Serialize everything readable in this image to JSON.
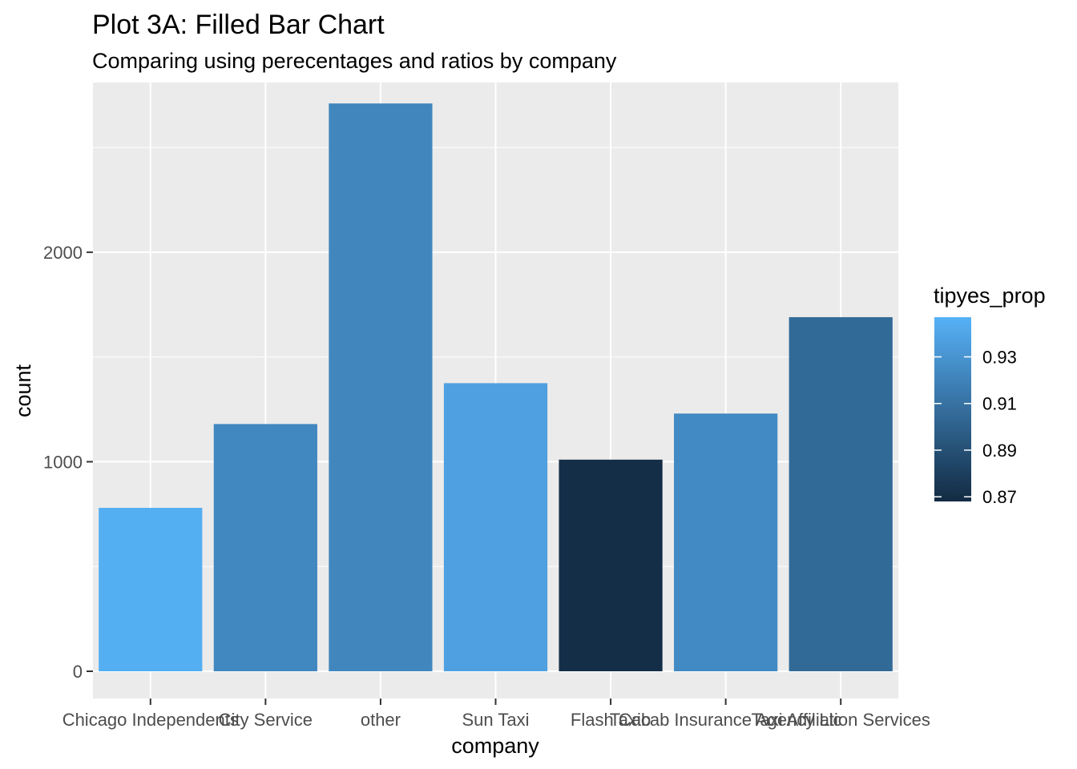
{
  "chart_data": {
    "type": "bar",
    "title": "Plot 3A: Filled Bar Chart",
    "subtitle": "Comparing using perecentages and ratios by company",
    "xlabel": "company",
    "ylabel": "count",
    "ylim": [
      -130,
      2810
    ],
    "yticks": [
      0,
      1000,
      2000
    ],
    "yticks_labels": [
      "0",
      "1000",
      "2000"
    ],
    "grid": true,
    "categories": [
      "Chicago Independents",
      "City Service",
      "other",
      "Sun Taxi",
      "Flash Cab",
      "Taxicab Insurance Agency Llc",
      "Taxi Affiliation Services"
    ],
    "values": [
      780,
      1180,
      2710,
      1375,
      1010,
      1230,
      1690
    ],
    "fill_values": [
      0.945,
      0.923,
      0.922,
      0.937,
      0.87,
      0.924,
      0.905
    ],
    "legend": {
      "title": "tipyes_prop",
      "placement": "right",
      "breaks": [
        0.93,
        0.91,
        0.89,
        0.87
      ],
      "break_labels": [
        "0.93",
        "0.91",
        "0.89",
        "0.87"
      ],
      "range": [
        0.868,
        0.947
      ],
      "color_low": "#132B43",
      "color_high": "#56B1F7"
    },
    "panel_color": "#EBEBEB",
    "grid_color": "#FFFFFF"
  }
}
